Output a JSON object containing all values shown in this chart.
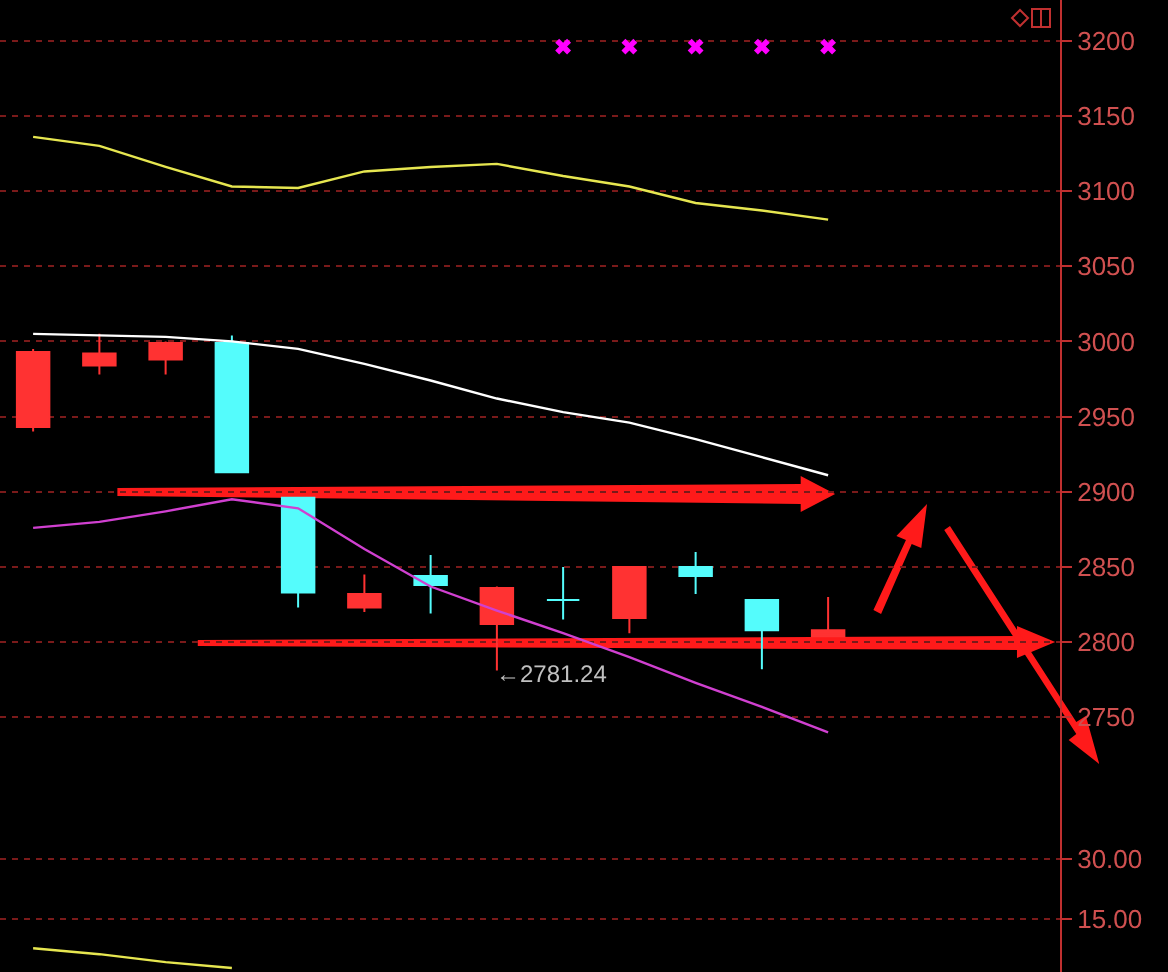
{
  "chart_data": [
    {
      "type": "candlestick",
      "categories": [
        null,
        null,
        null,
        null,
        null,
        null,
        null,
        null,
        null,
        null,
        null,
        null,
        null,
        null,
        null,
        null
      ],
      "ohlc": [
        [
          2943,
          2995,
          2940,
          2993
        ],
        [
          2984,
          3005,
          2978,
          2992
        ],
        [
          2988,
          3000,
          2978,
          2999
        ],
        [
          2999,
          3004,
          2913,
          2913
        ],
        [
          2896,
          2896,
          2823,
          2833
        ],
        [
          2823,
          2845,
          2820,
          2832
        ],
        [
          2844,
          2858,
          2819,
          2838
        ],
        [
          2812,
          2837,
          2781.24,
          2836
        ],
        [
          2828,
          2850,
          2815,
          2828
        ],
        [
          2816,
          2850,
          2806,
          2850
        ],
        [
          2850,
          2860,
          2832,
          2844
        ],
        [
          2828,
          2828,
          2782,
          2808
        ],
        [
          2804,
          2830,
          2804,
          2808
        ],
        null,
        null,
        null
      ],
      "colors": [
        "#ff3232",
        "#ff3232",
        "#ff3232",
        "#54fcfc",
        "#54fcfc",
        "#ff3232",
        "#54fcfc",
        "#ff3232",
        "#54fcfc",
        "#ff3232",
        "#54fcfc",
        "#54fcfc",
        "#ff3232",
        null,
        null,
        null
      ],
      "series": [
        {
          "type": "line",
          "color": "#e6e650",
          "values": [
            3136,
            3130,
            3116,
            3103,
            3102,
            3113,
            3116,
            3118,
            3110,
            3103,
            3092,
            3087,
            3081,
            null,
            null,
            null
          ]
        },
        {
          "type": "line",
          "color": "#ffffff",
          "values": [
            3005,
            3004,
            3003,
            3000,
            2995,
            2985,
            2974,
            2962,
            2953,
            2946,
            2935,
            2923,
            2911,
            null,
            null,
            null
          ]
        },
        {
          "type": "line",
          "color": "#d040d0",
          "values": [
            2876,
            2880,
            2887,
            2895,
            2889,
            2862,
            2837,
            2821,
            2806,
            2790,
            2773,
            2757,
            2740,
            null,
            null,
            null
          ]
        },
        {
          "type": "scatter",
          "color": "#ff00ff",
          "marker": "cross",
          "values": [
            null,
            null,
            null,
            null,
            null,
            null,
            null,
            null,
            3196,
            3196,
            3196,
            3196,
            3196,
            null,
            null,
            null
          ]
        }
      ],
      "ylim": [
        2715,
        3227
      ],
      "yticks": [
        2750,
        2800,
        2850,
        2900,
        2950,
        3000,
        3050,
        3100,
        3150,
        3200
      ],
      "grid": "y",
      "tick_labels": "y",
      "marker": "none",
      "annotations": [
        "←2781.24"
      ]
    },
    {
      "type": "line",
      "categories": [
        null,
        null,
        null,
        null,
        null,
        null,
        null,
        null,
        null,
        null,
        null,
        null,
        null,
        null,
        null,
        null
      ],
      "series": [
        {
          "color": "#e6e650",
          "values": [
            7.5,
            6,
            4,
            2.5,
            null,
            null,
            null,
            null,
            null,
            null,
            null,
            null,
            null,
            null,
            null,
            null
          ]
        }
      ],
      "ylim": [
        1.5,
        52.5
      ],
      "yticks": [
        {
          "value": 15,
          "label": "15.00"
        },
        {
          "value": 30,
          "label": "30.00"
        }
      ],
      "grid": "y",
      "tick_labels": "y",
      "marker": "none"
    }
  ]
}
